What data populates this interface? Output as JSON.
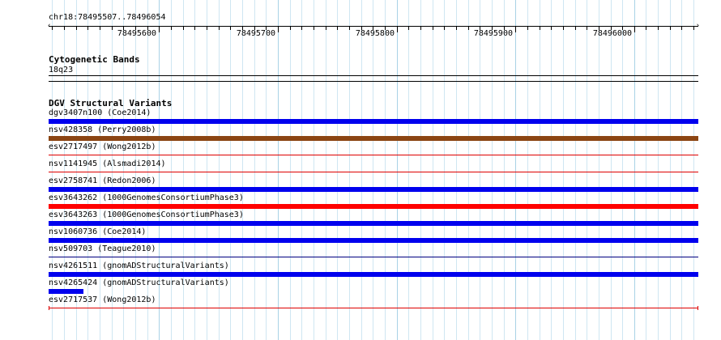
{
  "header": {
    "coordinates": "chr18:78495507..78496054"
  },
  "ruler": {
    "start": 78495507,
    "end": 78496054,
    "tick_labels": [
      "78495600",
      "78495700",
      "78495800",
      "78495900",
      "78496000"
    ]
  },
  "cytoband": {
    "title": "Cytogenetic Bands",
    "band": "18q23"
  },
  "dgv": {
    "title": "DGV Structural Variants",
    "variants": [
      {
        "id": "dgv3407n100",
        "study": "(Coe2014)",
        "color": "#0000ee",
        "style": "thick",
        "coverage": 1.0
      },
      {
        "id": "nsv428358",
        "study": "(Perry2008b)",
        "color": "#8b4513",
        "style": "thick",
        "coverage": 1.0
      },
      {
        "id": "esv2717497",
        "study": "(Wong2012b)",
        "color": "#dd0000",
        "style": "thin",
        "coverage": 1.0
      },
      {
        "id": "nsv1141945",
        "study": "(Alsmadi2014)",
        "color": "#dd0000",
        "style": "thin",
        "coverage": 1.0
      },
      {
        "id": "esv2758741",
        "study": "(Redon2006)",
        "color": "#0000ee",
        "style": "thick",
        "coverage": 1.0
      },
      {
        "id": "esv3643262",
        "study": "(1000GenomesConsortiumPhase3)",
        "color": "#ff0000",
        "style": "thick",
        "coverage": 1.0
      },
      {
        "id": "esv3643263",
        "study": "(1000GenomesConsortiumPhase3)",
        "color": "#0000ee",
        "style": "thick",
        "coverage": 1.0
      },
      {
        "id": "nsv1060736",
        "study": "(Coe2014)",
        "color": "#0000ee",
        "style": "thick",
        "coverage": 1.0
      },
      {
        "id": "nsv509703",
        "study": "(Teague2010)",
        "color": "#000080",
        "style": "thin",
        "coverage": 1.0
      },
      {
        "id": "nsv4261511",
        "study": "(gnomADStructuralVariants)",
        "color": "#0000ee",
        "style": "thick",
        "coverage": 1.0
      },
      {
        "id": "nsv4265424",
        "study": "(gnomADStructuralVariants)",
        "color": "#0000ee",
        "style": "thick",
        "coverage": 0.053
      },
      {
        "id": "esv2717537",
        "study": "(Wong2012b)",
        "color": "#dd0000",
        "style": "thin-capped",
        "coverage": 1.0
      }
    ]
  }
}
